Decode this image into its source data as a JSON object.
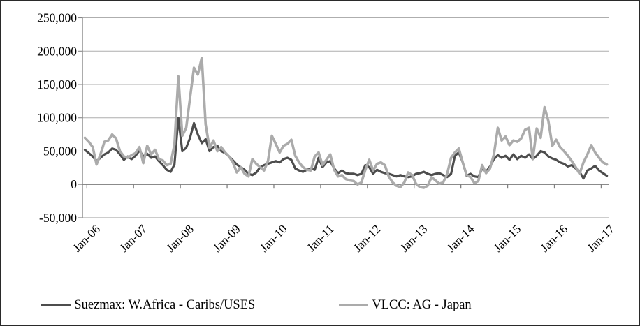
{
  "chart_data": {
    "type": "line",
    "title": "",
    "xlabel": "",
    "ylabel": "",
    "x_start": "Jan-2006",
    "x_frequency": "monthly",
    "x_end": "Mar-2017",
    "x_tick_labels": [
      "Jan-06",
      "Jan-07",
      "Jan-08",
      "Jan-09",
      "Jan-10",
      "Jan-11",
      "Jan-12",
      "Jan-13",
      "Jan-14",
      "Jan-15",
      "Jan-16",
      "Jan-17"
    ],
    "y_ticks": [
      250000,
      200000,
      150000,
      100000,
      50000,
      0,
      -50000
    ],
    "y_tick_labels": [
      "250,000",
      "200,000",
      "150,000",
      "100,000",
      "50,000",
      "0",
      "-50,000"
    ],
    "ylim": [
      -50000,
      250000
    ],
    "grid": true,
    "legend_position": "bottom",
    "axis_color": "#808080",
    "gridline_color": "#aeaeae",
    "series": [
      {
        "name": "Suezmax: W.Africa - Caribs/USES",
        "color": "#4d4d4d",
        "values": [
          52000,
          47000,
          42000,
          35000,
          40000,
          45000,
          48000,
          54000,
          52000,
          45000,
          37000,
          42000,
          38000,
          43000,
          51000,
          42000,
          46000,
          40000,
          42000,
          35000,
          29000,
          22000,
          19000,
          30000,
          100000,
          50000,
          55000,
          70000,
          92000,
          75000,
          62000,
          68000,
          50000,
          56000,
          58000,
          50000,
          47000,
          42000,
          36000,
          30000,
          26000,
          22000,
          16000,
          14000,
          18000,
          26000,
          29000,
          31000,
          33000,
          35000,
          33000,
          38000,
          40000,
          37000,
          24000,
          21000,
          19000,
          22000,
          24000,
          22000,
          40000,
          26000,
          33000,
          35000,
          24000,
          17000,
          21000,
          17000,
          16000,
          16000,
          14000,
          16000,
          29000,
          26000,
          16000,
          22000,
          19000,
          17000,
          16000,
          14000,
          12000,
          14000,
          12000,
          11000,
          12000,
          16000,
          17000,
          19000,
          16000,
          14000,
          16000,
          17000,
          14000,
          11000,
          16000,
          43000,
          48000,
          33000,
          13000,
          16000,
          12000,
          11000,
          24000,
          19000,
          27000,
          38000,
          44000,
          40000,
          43000,
          37000,
          45000,
          38000,
          43000,
          40000,
          45000,
          38000,
          43000,
          50000,
          48000,
          42000,
          39000,
          37000,
          33000,
          31000,
          27000,
          29000,
          24000,
          19000,
          9000,
          21000,
          24000,
          28000,
          21000,
          17000,
          13000
        ]
      },
      {
        "name": "VLCC: AG - Japan",
        "color": "#ababab",
        "values": [
          70000,
          64000,
          56000,
          30000,
          45000,
          64000,
          66000,
          75000,
          69000,
          50000,
          42000,
          40000,
          44000,
          47000,
          56000,
          32000,
          58000,
          45000,
          52000,
          38000,
          36000,
          29000,
          31000,
          60000,
          162000,
          73000,
          85000,
          130000,
          175000,
          165000,
          190000,
          90000,
          55000,
          66000,
          50000,
          56000,
          48000,
          42000,
          33000,
          18000,
          26000,
          16000,
          12000,
          38000,
          31000,
          26000,
          21000,
          35000,
          73000,
          61000,
          48000,
          58000,
          61000,
          67000,
          43000,
          33000,
          26000,
          22000,
          21000,
          42000,
          48000,
          29000,
          37000,
          45000,
          22000,
          12000,
          14000,
          8000,
          6000,
          5000,
          0,
          3000,
          22000,
          37000,
          21000,
          31000,
          33000,
          29000,
          12000,
          3000,
          -2000,
          -4000,
          3000,
          18000,
          14000,
          1000,
          -4000,
          -5000,
          -2000,
          11000,
          6000,
          1000,
          3000,
          16000,
          40000,
          48000,
          54000,
          33000,
          14000,
          11000,
          2000,
          5000,
          29000,
          17000,
          24000,
          45000,
          85000,
          66000,
          72000,
          59000,
          66000,
          64000,
          69000,
          82000,
          85000,
          38000,
          84000,
          70000,
          116000,
          95000,
          58000,
          67000,
          56000,
          50000,
          43000,
          35000,
          26000,
          16000,
          33000,
          45000,
          59000,
          48000,
          40000,
          33000,
          30000
        ]
      }
    ]
  }
}
